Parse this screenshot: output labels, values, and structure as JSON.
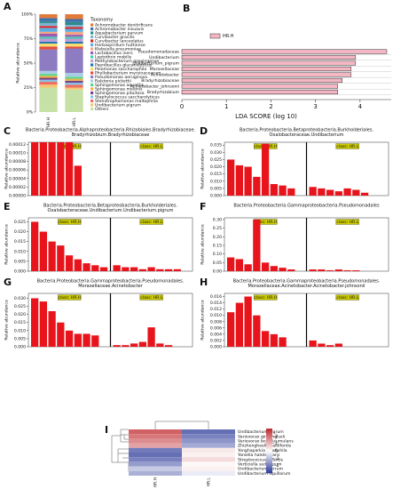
{
  "chart_data": [
    {
      "type": "stacked_bar",
      "panel": "A",
      "ylabel": "Relative abundance",
      "legend_title": "Taxonomy",
      "categories": [
        "HR.H",
        "HR.L"
      ],
      "ylim": [
        0,
        100
      ],
      "yticks": [
        {
          "value": 0,
          "label": "0%"
        },
        {
          "value": 25,
          "label": "25%"
        },
        {
          "value": 50,
          "label": "50%"
        },
        {
          "value": 75,
          "label": "75%"
        },
        {
          "value": 100,
          "label": "100%"
        }
      ],
      "series": [
        {
          "name": "Achromobacter denitrificans",
          "color": "#e07b39",
          "values": [
            4,
            5
          ]
        },
        {
          "name": "Achromobacter insuavis",
          "color": "#3a6fb0",
          "values": [
            3,
            3
          ]
        },
        {
          "name": "Aquabacterium parvum",
          "color": "#2e8b8b",
          "values": [
            2,
            3
          ]
        },
        {
          "name": "Curvibacter gracilis",
          "color": "#7fb3d5",
          "values": [
            3,
            2
          ]
        },
        {
          "name": "Curvibacter lanceolatus",
          "color": "#d62728",
          "values": [
            2,
            2
          ]
        },
        {
          "name": "Herbaspirillum huttiense",
          "color": "#5dade2",
          "values": [
            4,
            3
          ]
        },
        {
          "name": "Klebsiella pneumoniae",
          "color": "#f4a582",
          "values": [
            2,
            3
          ]
        },
        {
          "name": "Lactobacillus iners",
          "color": "#9b59b6",
          "values": [
            3,
            2
          ]
        },
        {
          "name": "Leptothrix mobilis",
          "color": "#48c9b0",
          "values": [
            2,
            2
          ]
        },
        {
          "name": "Methylobacterium goesingense",
          "color": "#c39bd3",
          "values": [
            3,
            3
          ]
        },
        {
          "name": "Paenibacillus glucanolyticus",
          "color": "#1f77b4",
          "values": [
            2,
            2
          ]
        },
        {
          "name": "Pelomonas saccharophila",
          "color": "#f7dc6f",
          "values": [
            3,
            3
          ]
        },
        {
          "name": "Phyllobacterium myrsinacearum",
          "color": "#e74c3c",
          "values": [
            3,
            2
          ]
        },
        {
          "name": "Pseudomonas aeruginosa",
          "color": "#8e7cc3",
          "values": [
            22,
            25
          ]
        },
        {
          "name": "Ralstonia pickettii",
          "color": "#a9cce3",
          "values": [
            3,
            4
          ]
        },
        {
          "name": "Sphingomonas aquatilis",
          "color": "#58d68d",
          "values": [
            2,
            2
          ]
        },
        {
          "name": "Sphingomonas melonis",
          "color": "#f5b041",
          "values": [
            2,
            2
          ]
        },
        {
          "name": "Sphingomonas pituitosa",
          "color": "#76448a",
          "values": [
            2,
            2
          ]
        },
        {
          "name": "Staphylococcus saccharolyticus",
          "color": "#85c1e9",
          "values": [
            2,
            2
          ]
        },
        {
          "name": "Stenotrophomonas maltophilia",
          "color": "#ec7063",
          "values": [
            3,
            3
          ]
        },
        {
          "name": "Undibacterium pigrum",
          "color": "#f8c471",
          "values": [
            3,
            2
          ]
        },
        {
          "name": "Others",
          "color": "#c5e1a5",
          "values": [
            25,
            23
          ]
        }
      ]
    },
    {
      "type": "hbar",
      "panel": "B",
      "xlabel": "LDA SCORE (log 10)",
      "series": [
        {
          "name": "HR.H",
          "color": "#f4b6c2",
          "values": [
            4.6,
            3.9,
            3.9,
            3.8,
            3.8,
            3.6,
            3.5,
            3.5
          ]
        }
      ],
      "categories": [
        "Pseudomonadaceae",
        "Undibacterium",
        "Undibacterium_pigrum",
        "Moraxellaceae",
        "Acinetobacter",
        "Bradyrhizobiaceae",
        "Acinetobacter_johnsonii",
        "Bradyrhizobium"
      ],
      "xlim": [
        0,
        4.7
      ],
      "xticks": [
        0,
        1,
        2,
        3,
        4
      ]
    },
    {
      "type": "lefse_bar",
      "panel": "C",
      "ylabel": "Relative abundance",
      "title": [
        "Bacteria.Proteobacteria.Alphaproteobacteria.Rhizobiales.Bradyrhizobiaceae.",
        "Bradyrhizobium.Bradyrhizobiaceae"
      ],
      "ylim": [
        0,
        0.000125
      ],
      "yticks": [
        {
          "value": 0,
          "label": "0.00000"
        },
        {
          "value": 2e-05,
          "label": "0.00002"
        },
        {
          "value": 4e-05,
          "label": "0.00004"
        },
        {
          "value": 6e-05,
          "label": "0.00006"
        },
        {
          "value": 8e-05,
          "label": "0.00008"
        },
        {
          "value": 0.0001,
          "label": "0.00010"
        },
        {
          "value": 0.00012,
          "label": "0.00012"
        }
      ],
      "groups": [
        {
          "label": "class: HR.H",
          "color": "#e8141c",
          "values": [
            0.000125,
            0.000125,
            0.000125,
            0.000125,
            0.000125,
            7e-05
          ]
        },
        {
          "label": "class: HR.L",
          "color": "#e8141c",
          "values": []
        }
      ]
    },
    {
      "type": "lefse_bar",
      "panel": "D",
      "ylabel": "Relative abundance",
      "title": [
        "Bacteria.Proteobacteria.Betaproteobacteria.Burkholderiales.",
        "Oxalobacteraceae.Undibacterium"
      ],
      "ylim": [
        0,
        0.037
      ],
      "yticks": [
        {
          "value": 0,
          "label": "0.000"
        },
        {
          "value": 0.005,
          "label": "0.005"
        },
        {
          "value": 0.01,
          "label": "0.010"
        },
        {
          "value": 0.015,
          "label": "0.015"
        },
        {
          "value": 0.02,
          "label": "0.020"
        },
        {
          "value": 0.025,
          "label": "0.025"
        },
        {
          "value": 0.03,
          "label": "0.030"
        },
        {
          "value": 0.035,
          "label": "0.035"
        }
      ],
      "groups": [
        {
          "label": "class: HR.H",
          "color": "#e8141c",
          "values": [
            0.025,
            0.021,
            0.02,
            0.013,
            0.036,
            0.008,
            0.007,
            0.005
          ]
        },
        {
          "label": "class: HR.L",
          "color": "#e8141c",
          "values": [
            0.006,
            0.005,
            0.004,
            0.003,
            0.005,
            0.004,
            0.002
          ]
        }
      ]
    },
    {
      "type": "lefse_bar",
      "panel": "E",
      "ylabel": "Relative abundance",
      "title": [
        "Bacteria.Proteobacteria.Betaproteobacteria.Burkholderiales.",
        "Oxalobacteraceae.Undibacterium.Undibacterium.pigrum"
      ],
      "ylim": [
        0,
        0.027
      ],
      "yticks": [
        {
          "value": 0,
          "label": "0.000"
        },
        {
          "value": 0.005,
          "label": "0.005"
        },
        {
          "value": 0.01,
          "label": "0.010"
        },
        {
          "value": 0.015,
          "label": "0.015"
        },
        {
          "value": 0.02,
          "label": "0.020"
        },
        {
          "value": 0.025,
          "label": "0.025"
        }
      ],
      "groups": [
        {
          "label": "class: HR.H",
          "color": "#e8141c",
          "values": [
            0.025,
            0.02,
            0.015,
            0.013,
            0.008,
            0.006,
            0.004,
            0.003,
            0.002
          ]
        },
        {
          "label": "class: HR.L",
          "color": "#e8141c",
          "values": [
            0.003,
            0.002,
            0.002,
            0.001,
            0.002,
            0.001,
            0.001,
            0.001
          ]
        }
      ]
    },
    {
      "type": "lefse_bar",
      "panel": "F",
      "ylabel": "Relative abundance",
      "title": [
        "Bacteria.Proteobacteria.Gammaproteobacteria.Pseudomonadales"
      ],
      "ylim": [
        0,
        0.31
      ],
      "yticks": [
        {
          "value": 0,
          "label": "0.00"
        },
        {
          "value": 0.05,
          "label": "0.05"
        },
        {
          "value": 0.1,
          "label": "0.10"
        },
        {
          "value": 0.15,
          "label": "0.15"
        },
        {
          "value": 0.2,
          "label": "0.20"
        },
        {
          "value": 0.25,
          "label": "0.25"
        },
        {
          "value": 0.3,
          "label": "0.30"
        }
      ],
      "groups": [
        {
          "label": "class: HR.H",
          "color": "#e8141c",
          "values": [
            0.08,
            0.07,
            0.04,
            0.3,
            0.05,
            0.03,
            0.02,
            0.01
          ]
        },
        {
          "label": "class: HR.L",
          "color": "#e8141c",
          "values": [
            0.01,
            0.01,
            0.005,
            0.01,
            0.005,
            0.005
          ]
        }
      ]
    },
    {
      "type": "lefse_bar",
      "panel": "G",
      "ylabel": "Relative abundance",
      "title": [
        "Bacteria.Proteobacteria.Gammaproteobacteria.Pseudomonadales.",
        "Moraxellaceae.Acinetobacter"
      ],
      "ylim": [
        0,
        0.033
      ],
      "yticks": [
        {
          "value": 0,
          "label": "0.000"
        },
        {
          "value": 0.005,
          "label": "0.005"
        },
        {
          "value": 0.01,
          "label": "0.010"
        },
        {
          "value": 0.015,
          "label": "0.015"
        },
        {
          "value": 0.02,
          "label": "0.020"
        },
        {
          "value": 0.025,
          "label": "0.025"
        },
        {
          "value": 0.03,
          "label": "0.030"
        }
      ],
      "groups": [
        {
          "label": "class: HR.H",
          "color": "#e8141c",
          "values": [
            0.03,
            0.028,
            0.022,
            0.015,
            0.01,
            0.008,
            0.008,
            0.007
          ]
        },
        {
          "label": "class: HR.L",
          "color": "#e8141c",
          "values": [
            0.001,
            0.001,
            0.002,
            0.003,
            0.012,
            0.002,
            0.001
          ]
        }
      ]
    },
    {
      "type": "lefse_bar",
      "panel": "H",
      "ylabel": "Relative abundance",
      "title": [
        "Bacteria.Proteobacteria.Gammaproteobacteria.Pseudomonadales.",
        "Moraxellaceae.Acinetobacter.Acinetobacter.johnsonii"
      ],
      "ylim": [
        0,
        0.017
      ],
      "yticks": [
        {
          "value": 0,
          "label": "0.000"
        },
        {
          "value": 0.002,
          "label": "0.002"
        },
        {
          "value": 0.004,
          "label": "0.004"
        },
        {
          "value": 0.006,
          "label": "0.006"
        },
        {
          "value": 0.008,
          "label": "0.008"
        },
        {
          "value": 0.01,
          "label": "0.010"
        },
        {
          "value": 0.012,
          "label": "0.012"
        },
        {
          "value": 0.014,
          "label": "0.014"
        },
        {
          "value": 0.016,
          "label": "0.016"
        }
      ],
      "groups": [
        {
          "label": "class: HR.H",
          "color": "#e8141c",
          "values": [
            0.011,
            0.014,
            0.016,
            0.01,
            0.005,
            0.004,
            0.003
          ]
        },
        {
          "label": "class: HR.L",
          "color": "#e8141c",
          "values": [
            0.002,
            0.001,
            0.0005,
            0.001
          ]
        }
      ]
    },
    {
      "type": "heatmap",
      "panel": "I",
      "columns": [
        "HR.H",
        "HR.L"
      ],
      "rows": [
        "Undibacterium pigrum",
        "Variovorax ginsengisoli",
        "Variovorax boronicumulans",
        "Zhizhongheella caldifontis",
        "Yonghaparkia alkaliphila",
        "Yaniella halotolerans",
        "Streptococcus infantis",
        "Verticiella sediminum",
        "Undibacterium terrum",
        "Undibacterium squillarum"
      ],
      "values": [
        [
          2.2,
          -2.2
        ],
        [
          1.9,
          -1.9
        ],
        [
          1.6,
          -1.6
        ],
        [
          1.3,
          -1.3
        ],
        [
          -2.0,
          0.3
        ],
        [
          -2.2,
          0.2
        ],
        [
          -1.9,
          0.5
        ],
        [
          -1.5,
          0.1
        ],
        [
          -0.8,
          0.2
        ],
        [
          -1.2,
          -0.3
        ]
      ],
      "clim": [
        -3,
        3
      ],
      "cticks": [
        2,
        1,
        0,
        -1,
        -2
      ],
      "colormap": [
        "#2b3a99",
        "#ffffff",
        "#c0282d"
      ]
    }
  ]
}
